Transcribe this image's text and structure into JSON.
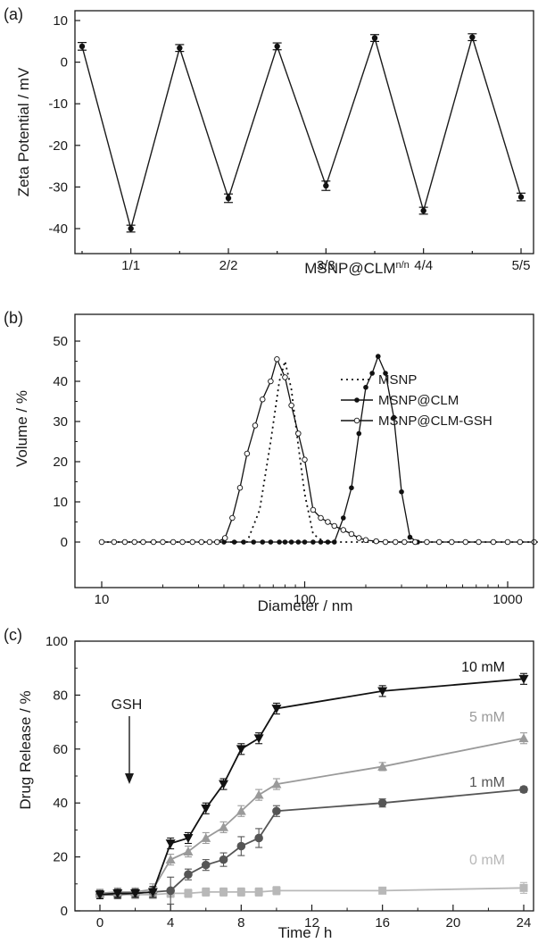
{
  "chart_data": [
    {
      "panel": "(a)",
      "type": "line",
      "xlabel": "MSNP@CLM",
      "xlabel_superscript": "n/n",
      "ylabel": "Zeta Potential / mV",
      "ylim": [
        -45,
        10
      ],
      "yticks": [
        10,
        0,
        -10,
        -20,
        -30,
        -40
      ],
      "categories": [
        "",
        "1/1",
        "",
        "2/2",
        "",
        "3/3",
        "",
        "4/4",
        "",
        "5/5"
      ],
      "series": [
        {
          "values": [
            3.8,
            -40.0,
            3.4,
            -32.7,
            3.8,
            -29.7,
            5.8,
            -35.7,
            6.0,
            -32.4
          ],
          "errors": [
            0.6,
            0.5,
            0.5,
            0.7,
            0.5,
            0.8,
            0.5,
            0.5,
            0.5,
            0.6
          ],
          "color": "#1a1a1a"
        }
      ],
      "grid": false
    },
    {
      "panel": "(b)",
      "type": "line",
      "xscale": "log",
      "xlabel": "Diameter / nm",
      "ylabel": "Volume / %",
      "xlim": [
        10,
        6000
      ],
      "ylim": [
        -5,
        53
      ],
      "xticks": [
        "10",
        "100",
        "1000"
      ],
      "yticks": [
        0,
        10,
        20,
        30,
        40,
        50
      ],
      "legend_position": "right",
      "series": [
        {
          "name": "MSNP",
          "style": "dotted",
          "marker": "none",
          "x": [
            10,
            40,
            52,
            60,
            68,
            75,
            80,
            86,
            93,
            100,
            110,
            125,
            6000
          ],
          "y": [
            0,
            0,
            0,
            8,
            25,
            40,
            45,
            38,
            24,
            12,
            2,
            0,
            0
          ]
        },
        {
          "name": "MSNP@CLM",
          "style": "solid",
          "marker": "filled-circle",
          "x": [
            40,
            45,
            50,
            56,
            62,
            68,
            75,
            80,
            86,
            93,
            100,
            110,
            120,
            130,
            140,
            155,
            170,
            185,
            200,
            215,
            230,
            250,
            275,
            300,
            330,
            360
          ],
          "y": [
            0,
            0,
            0,
            0,
            0,
            0,
            0,
            0,
            0,
            0,
            0,
            0,
            0,
            0,
            0,
            6,
            13.5,
            27,
            38.5,
            42,
            46.2,
            42,
            31,
            12.5,
            1.2,
            0
          ]
        },
        {
          "name": "MSNP@CLM-GSH",
          "style": "solid",
          "marker": "open-circle",
          "x": [
            10,
            11.5,
            13,
            14.5,
            16,
            18,
            20,
            22.5,
            25,
            28,
            31,
            34,
            37,
            40.5,
            44,
            48,
            52,
            57,
            62,
            68,
            73,
            80,
            86,
            93,
            100,
            110,
            120,
            130,
            140,
            155,
            170,
            185,
            200,
            225,
            250,
            280,
            310,
            350,
            400,
            460,
            530,
            620,
            720,
            850,
            1000,
            1150,
            1350,
            1600,
            1900,
            2200,
            2600,
            3100,
            3600,
            4300,
            5000,
            5800
          ],
          "y": [
            0,
            0,
            0,
            0,
            0,
            0,
            0,
            0,
            0,
            0,
            0,
            0,
            0,
            1,
            6,
            13.5,
            22,
            29,
            35.5,
            40,
            45.5,
            41,
            34,
            27,
            20.5,
            8,
            6,
            5,
            4,
            3,
            2,
            1,
            0.5,
            0.2,
            0,
            0,
            0,
            0,
            0,
            0,
            0,
            0,
            0,
            0,
            0,
            0,
            0,
            0,
            0,
            0,
            0,
            0,
            0,
            0,
            0,
            0
          ]
        }
      ],
      "grid": false
    },
    {
      "panel": "(c)",
      "type": "line",
      "xlabel": "Time / h",
      "ylabel": "Drug Release / %",
      "xlim": [
        -1.5,
        24.5
      ],
      "ylim": [
        0,
        100
      ],
      "xticks": [
        0,
        4,
        8,
        12,
        16,
        20,
        24
      ],
      "yticks": [
        0,
        20,
        40,
        60,
        80,
        100
      ],
      "annotation": {
        "text": "GSH",
        "x": 3
      },
      "series": [
        {
          "name": "10 mM",
          "color": "#111111",
          "marker": "down-triangle",
          "x": [
            0,
            1,
            2,
            3,
            4,
            5,
            6,
            7,
            8,
            9,
            10,
            16,
            24
          ],
          "y": [
            6,
            6.5,
            6.5,
            7,
            25,
            27,
            38,
            47,
            60,
            64,
            75,
            81.5,
            86
          ],
          "errors": [
            1.5,
            1.5,
            1.5,
            2,
            2,
            2,
            2,
            2,
            2,
            2,
            2,
            2,
            2
          ]
        },
        {
          "name": "5 mM",
          "color": "#9a9a9a",
          "marker": "up-triangle",
          "x": [
            0,
            1,
            2,
            3,
            4,
            5,
            6,
            7,
            8,
            9,
            10,
            16,
            24
          ],
          "y": [
            6.5,
            7,
            7,
            8,
            19,
            22,
            27,
            31,
            37,
            43,
            47,
            53.5,
            64
          ],
          "errors": [
            1.5,
            1.5,
            1.5,
            2,
            2,
            2,
            2,
            2,
            2,
            2,
            2,
            1.5,
            2
          ]
        },
        {
          "name": "1 mM",
          "color": "#555555",
          "marker": "circle",
          "x": [
            0,
            1,
            2,
            3,
            4,
            5,
            6,
            7,
            8,
            9,
            10,
            16,
            24
          ],
          "y": [
            6,
            6,
            6.5,
            7,
            7.5,
            13.5,
            17,
            19,
            24,
            27,
            37,
            40,
            45
          ],
          "errors": [
            1.5,
            1.5,
            1.5,
            2,
            5,
            2,
            2,
            2.5,
            3.5,
            3.5,
            2,
            1.5,
            1
          ]
        },
        {
          "name": "0 mM",
          "color": "#b8b8b8",
          "marker": "square",
          "x": [
            0,
            1,
            2,
            3,
            4,
            5,
            6,
            7,
            8,
            9,
            10,
            16,
            24
          ],
          "y": [
            6,
            6,
            6,
            6,
            6.5,
            6.5,
            7,
            7,
            7,
            7,
            7.5,
            7.5,
            8.5
          ],
          "errors": [
            1.5,
            1.5,
            1.5,
            1.5,
            1.5,
            1.5,
            1.5,
            1.5,
            1.5,
            1.5,
            1.5,
            1,
            2
          ]
        }
      ],
      "grid": false
    }
  ]
}
